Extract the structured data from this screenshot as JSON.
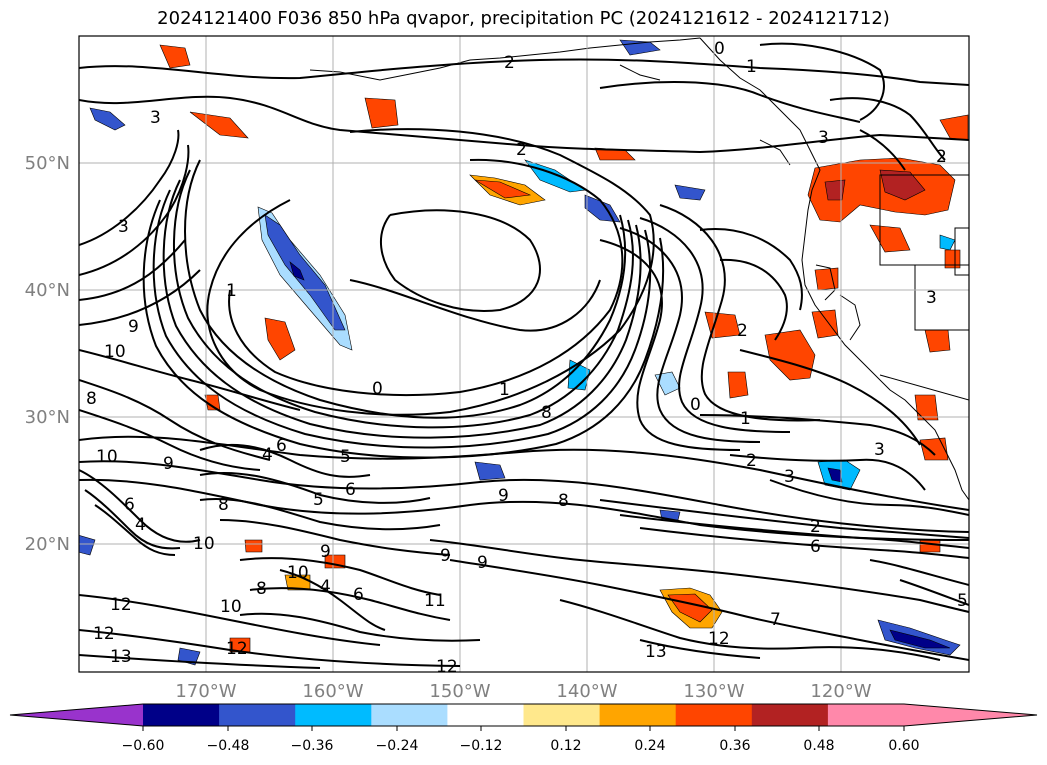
{
  "title": "2024121400 F036 850 hPa qvapor, precipitation PC (2024121612 - 2024121712)",
  "latitude_labels": [
    "50°N",
    "40°N",
    "30°N",
    "20°N"
  ],
  "longitude_labels": [
    "170°W",
    "160°W",
    "150°W",
    "140°W",
    "130°W",
    "120°W"
  ],
  "contour_labels": [
    {
      "text": "2",
      "name": "contour-label-2-north"
    },
    {
      "text": "1",
      "name": "contour-label-1-north"
    },
    {
      "text": "0",
      "name": "contour-label-0-north"
    },
    {
      "text": "3",
      "name": "contour-label-3-west"
    },
    {
      "text": "3",
      "name": "contour-label-3-left"
    },
    {
      "text": "2",
      "name": "contour-label-2-mid"
    },
    {
      "text": "3",
      "name": "contour-label-3-east"
    },
    {
      "text": "2",
      "name": "contour-label-2-east"
    },
    {
      "text": "1",
      "name": "contour-label-1-west"
    },
    {
      "text": "9",
      "name": "contour-label-9-west"
    },
    {
      "text": "10",
      "name": "contour-label-10-west"
    },
    {
      "text": "8",
      "name": "contour-label-8-west"
    },
    {
      "text": "0",
      "name": "contour-label-0-mid"
    },
    {
      "text": "8",
      "name": "contour-label-8-mid"
    },
    {
      "text": "2",
      "name": "contour-label-2-center"
    },
    {
      "text": "1",
      "name": "contour-label-1-center"
    },
    {
      "text": "3",
      "name": "contour-label-3-center"
    },
    {
      "text": "0",
      "name": "contour-label-0-east"
    },
    {
      "text": "1",
      "name": "contour-label-1-east"
    },
    {
      "text": "2",
      "name": "contour-label-2-southeast"
    },
    {
      "text": "3",
      "name": "contour-label-3-southeast"
    },
    {
      "text": "3",
      "name": "contour-label-3-coast"
    },
    {
      "text": "6",
      "name": "contour-label-6-a"
    },
    {
      "text": "4",
      "name": "contour-label-4-a"
    },
    {
      "text": "5",
      "name": "contour-label-5-a"
    },
    {
      "text": "6",
      "name": "contour-label-6-b"
    },
    {
      "text": "5",
      "name": "contour-label-5-b"
    },
    {
      "text": "8",
      "name": "contour-label-8-a"
    },
    {
      "text": "9",
      "name": "contour-label-9-a"
    },
    {
      "text": "8",
      "name": "contour-label-8-b"
    },
    {
      "text": "10",
      "name": "contour-label-10-a"
    },
    {
      "text": "9",
      "name": "contour-label-9-b"
    },
    {
      "text": "9",
      "name": "contour-label-9-c"
    },
    {
      "text": "9",
      "name": "contour-label-9-d"
    },
    {
      "text": "10",
      "name": "contour-label-10-b"
    },
    {
      "text": "8",
      "name": "contour-label-8-c"
    },
    {
      "text": "4",
      "name": "contour-label-4-b"
    },
    {
      "text": "6",
      "name": "contour-label-6-c"
    },
    {
      "text": "10",
      "name": "contour-label-10-c"
    },
    {
      "text": "11",
      "name": "contour-label-11"
    },
    {
      "text": "12",
      "name": "contour-label-12-a"
    },
    {
      "text": "12",
      "name": "contour-label-12-b"
    },
    {
      "text": "13",
      "name": "contour-label-13-a"
    },
    {
      "text": "12",
      "name": "contour-label-12-c"
    },
    {
      "text": "12",
      "name": "contour-label-12-d"
    },
    {
      "text": "13",
      "name": "contour-label-13-b"
    },
    {
      "text": "7",
      "name": "contour-label-7"
    },
    {
      "text": "12",
      "name": "contour-label-12-e"
    },
    {
      "text": "2",
      "name": "contour-label-2-south"
    },
    {
      "text": "6",
      "name": "contour-label-6-south"
    },
    {
      "text": "5",
      "name": "contour-label-5-south"
    },
    {
      "text": "10",
      "name": "contour-label-10-far-west"
    },
    {
      "text": "9",
      "name": "contour-label-9-e"
    },
    {
      "text": "6",
      "name": "contour-label-6-d"
    },
    {
      "text": "4",
      "name": "contour-label-4-c"
    }
  ],
  "colorbar": {
    "tick_labels": [
      "−0.60",
      "−0.48",
      "−0.36",
      "−0.24",
      "−0.12",
      "0.12",
      "0.24",
      "0.36",
      "0.48",
      "0.60"
    ],
    "colors": [
      "#9933cc",
      "#000088",
      "#3355cc",
      "#00bbff",
      "#aaddff",
      "#ffffff",
      "#ffe88c",
      "#ffa500",
      "#ff4500",
      "#b22222",
      "#ff88aa",
      "#ff88aa"
    ]
  },
  "colors": {
    "contour": "#000000",
    "coast": "#000000",
    "grid": "#b0b0b0",
    "tick_label": "#808080"
  }
}
